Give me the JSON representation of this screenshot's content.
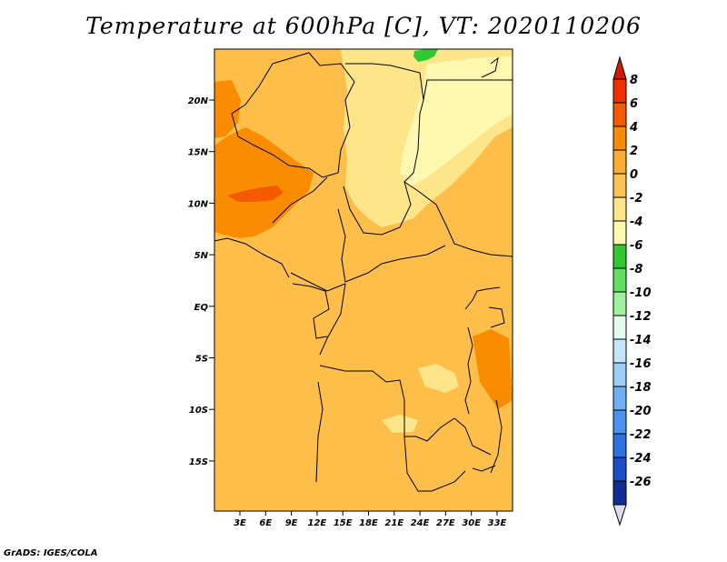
{
  "title": "Temperature at 600hPa [C], VT: 2020110206",
  "credit": "GrADS: IGES/COLA",
  "map": {
    "lat_labels": [
      "20N",
      "15N",
      "10N",
      "5N",
      "EQ",
      "5S",
      "10S",
      "15S"
    ],
    "lon_labels": [
      "3E",
      "6E",
      "9E",
      "12E",
      "15E",
      "18E",
      "21E",
      "24E",
      "27E",
      "30E",
      "33E"
    ]
  },
  "colorbar": {
    "labels": [
      "8",
      "6",
      "4",
      "2",
      "0",
      "-2",
      "-4",
      "-6",
      "-8",
      "-10",
      "-12",
      "-14",
      "-16",
      "-18",
      "-20",
      "-22",
      "-24",
      "-26"
    ],
    "colors": [
      "#f03000",
      "#f65a00",
      "#fa8c00",
      "#fdad33",
      "#fdc452",
      "#fde58a",
      "#fff8b0",
      "#32c832",
      "#60e060",
      "#9ef29e",
      "#e4fcf0",
      "#c4e6fc",
      "#9ccef9",
      "#6fb0f4",
      "#4a92ee",
      "#2f71e0",
      "#1c4fc5",
      "#0f2d94"
    ],
    "top_color": "#d11b00",
    "bottom_color": "#dedaf2"
  }
}
